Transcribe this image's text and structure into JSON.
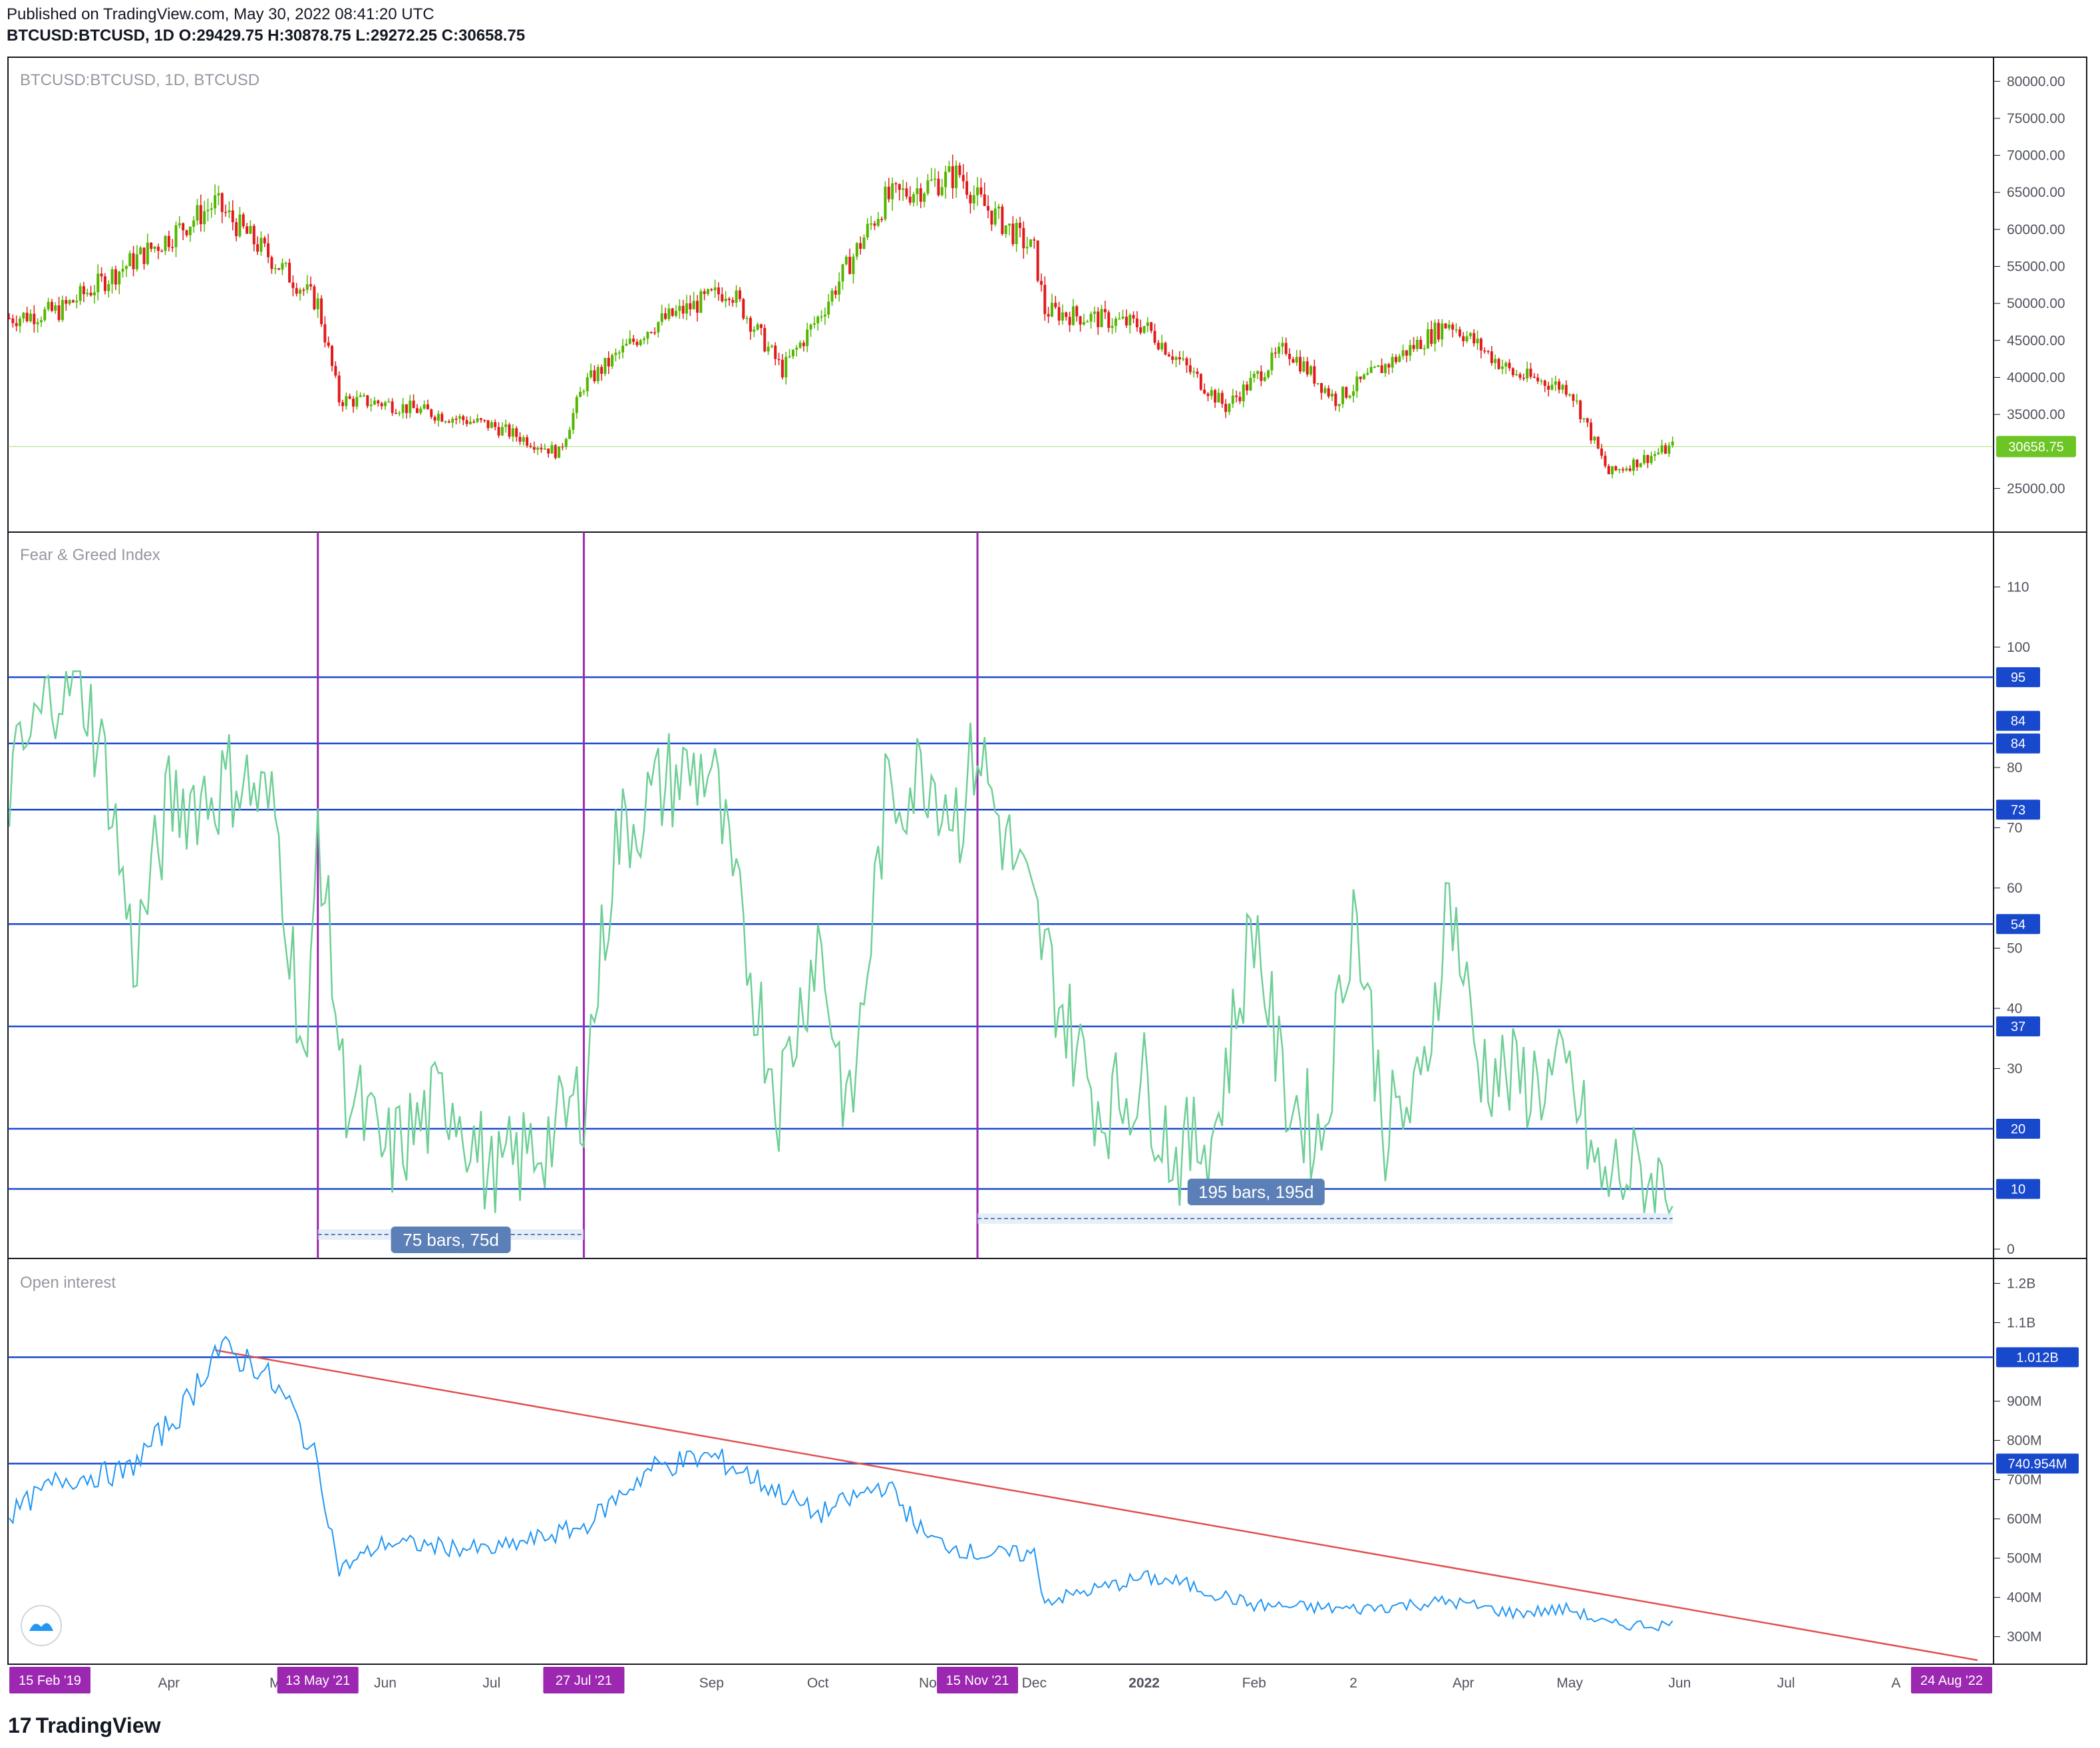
{
  "header": {
    "published": "Published on TradingView.com, May 30, 2022 08:41:20 UTC",
    "symbol": "BTCUSD:BTCUSD, 1D",
    "o_label": "O:",
    "o_value": "29429.75",
    "h_label": "H:",
    "h_value": "30878.75",
    "l_label": "L:",
    "l_value": "29272.25",
    "c_label": "C:",
    "c_value": "30658.75"
  },
  "colors": {
    "up": "#26a69a",
    "down": "#ef5350",
    "candle_up": "#53b700",
    "candle_down": "#e31a1c",
    "fng_line": "#6ecf95",
    "oi_line": "#2196f3",
    "hline": "#1848cc",
    "vline": "#9c27b0",
    "badge_blue": "#1848cc",
    "badge_purple": "#9c27b0",
    "price_badge": "#6cc524",
    "trend": "#e05050",
    "measure": "#5b7fb6"
  },
  "panes": {
    "price": {
      "label": "BTCUSD:BTCUSD, 1D, BTCUSD",
      "last_price": "30658.75",
      "axis_ticks": [
        "80000.00",
        "75000.00",
        "70000.00",
        "65000.00",
        "60000.00",
        "55000.00",
        "50000.00",
        "45000.00",
        "40000.00",
        "35000.00",
        "25000.00"
      ]
    },
    "fng": {
      "label": "Fear & Greed Index",
      "axis_ticks": [
        "110",
        "100",
        "80",
        "70",
        "60",
        "50",
        "40",
        "30",
        "0"
      ],
      "level_badges": [
        "95",
        "84",
        "84",
        "73",
        "54",
        "37",
        "20",
        "10"
      ],
      "measure_left": "75 bars, 75d",
      "measure_right": "195 bars, 195d"
    },
    "oi": {
      "label": "Open interest",
      "axis_ticks": [
        "1.2B",
        "1.1B",
        "900M",
        "800M",
        "700M",
        "600M",
        "500M",
        "400M",
        "300M"
      ],
      "level_badges": [
        "1.012B",
        "740.954M"
      ]
    }
  },
  "time_axis": {
    "labels": [
      "2",
      "Apr",
      "M",
      "Jun",
      "Jul",
      "Sep",
      "Oct",
      "No",
      "Dec",
      "2022",
      "Feb",
      "2",
      "Apr",
      "May",
      "Jun",
      "Jul",
      "A"
    ],
    "badges": [
      "15 Feb '19",
      "13 May '21",
      "27 Jul '21",
      "15 Nov '21",
      "24 Aug '22"
    ]
  },
  "footer": {
    "brand": "TradingView",
    "mark": "17"
  },
  "chart_data": [
    {
      "type": "line",
      "title": "BTCUSD:BTCUSD, 1D, BTCUSD",
      "xlabel": "",
      "ylabel": "",
      "x": [
        "2021-02-15",
        "2021-03-01",
        "2021-04-01",
        "2021-04-14",
        "2021-05-13",
        "2021-05-19",
        "2021-06-01",
        "2021-07-01",
        "2021-07-20",
        "2021-07-27",
        "2021-08-15",
        "2021-09-06",
        "2021-09-21",
        "2021-10-01",
        "2021-10-20",
        "2021-11-10",
        "2021-11-15",
        "2021-12-01",
        "2021-12-04",
        "2022-01-01",
        "2022-01-24",
        "2022-02-10",
        "2022-02-24",
        "2022-03-28",
        "2022-04-15",
        "2022-05-01",
        "2022-05-12",
        "2022-05-30"
      ],
      "values": [
        48000,
        49000,
        59000,
        63500,
        50000,
        37000,
        36500,
        33500,
        29800,
        39000,
        47000,
        52000,
        41000,
        48000,
        64000,
        67500,
        64000,
        57000,
        49000,
        47000,
        36000,
        44000,
        37000,
        47500,
        40500,
        38500,
        27000,
        30658.75
      ],
      "ylim": [
        20000,
        82000
      ],
      "last_value": 30658.75
    },
    {
      "type": "line",
      "title": "Fear & Greed Index",
      "xlabel": "",
      "ylabel": "",
      "x": [
        "2021-02-15",
        "2021-02-22",
        "2021-03-01",
        "2021-03-08",
        "2021-03-15",
        "2021-03-22",
        "2021-04-01",
        "2021-04-14",
        "2021-04-20",
        "2021-05-01",
        "2021-05-10",
        "2021-05-13",
        "2021-05-20",
        "2021-06-01",
        "2021-06-20",
        "2021-07-01",
        "2021-07-20",
        "2021-07-27",
        "2021-08-05",
        "2021-08-20",
        "2021-09-01",
        "2021-09-07",
        "2021-09-20",
        "2021-10-01",
        "2021-10-10",
        "2021-10-20",
        "2021-11-01",
        "2021-11-10",
        "2021-11-15",
        "2021-11-20",
        "2021-12-01",
        "2021-12-10",
        "2021-12-20",
        "2022-01-01",
        "2022-01-10",
        "2022-01-21",
        "2022-02-01",
        "2022-02-09",
        "2022-02-20",
        "2022-03-01",
        "2022-03-10",
        "2022-03-20",
        "2022-03-28",
        "2022-04-05",
        "2022-04-15",
        "2022-05-01",
        "2022-05-10",
        "2022-05-15",
        "2022-05-30"
      ],
      "values": [
        77,
        86,
        95,
        93,
        78,
        48,
        74,
        76,
        79,
        72,
        28,
        72,
        28,
        15,
        26,
        11,
        20,
        26,
        68,
        78,
        80,
        60,
        25,
        52,
        21,
        74,
        80,
        72,
        84,
        73,
        55,
        38,
        23,
        28,
        15,
        20,
        55,
        27,
        18,
        58,
        20,
        25,
        60,
        31,
        28,
        28,
        10,
        13,
        10
      ],
      "ylim": [
        0,
        118
      ],
      "reference_levels": [
        95,
        84,
        84,
        73,
        54,
        37,
        20,
        10
      ],
      "annotations": [
        "75 bars, 75d",
        "195 bars, 195d"
      ]
    },
    {
      "type": "line",
      "title": "Open interest",
      "xlabel": "",
      "ylabel": "",
      "x": [
        "2021-02-15",
        "2021-03-01",
        "2021-03-20",
        "2021-04-05",
        "2021-04-14",
        "2021-04-25",
        "2021-05-05",
        "2021-05-13",
        "2021-05-19",
        "2021-06-01",
        "2021-07-01",
        "2021-07-27",
        "2021-08-15",
        "2021-09-01",
        "2021-09-10",
        "2021-10-01",
        "2021-10-20",
        "2021-11-01",
        "2021-11-15",
        "2021-12-01",
        "2021-12-04",
        "2022-01-01",
        "2022-01-10",
        "2022-02-01",
        "2022-03-01",
        "2022-03-28",
        "2022-04-15",
        "2022-05-01",
        "2022-05-12",
        "2022-05-30"
      ],
      "values": [
        610,
        700,
        720,
        880,
        1030,
        1000,
        890,
        740,
        470,
        540,
        520,
        580,
        730,
        760,
        720,
        610,
        690,
        550,
        510,
        510,
        390,
        450,
        440,
        380,
        370,
        390,
        360,
        370,
        330,
        330
      ],
      "value_unit": "M",
      "ylim": [
        240,
        1250
      ],
      "reference_levels": [
        "1.012B",
        "740.954M"
      ],
      "trendline": {
        "from": [
          "2021-04-14",
          1030
        ],
        "to": [
          "2022-08-24",
          240
        ]
      }
    }
  ]
}
